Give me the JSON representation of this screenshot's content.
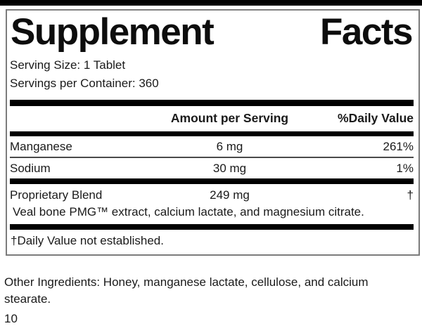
{
  "colors": {
    "heavy_bar": "#000000",
    "panel_border": "#7c7c7c",
    "thin_rule": "#4a4a4a",
    "text": "#1a1a1a",
    "background": "#ffffff"
  },
  "label": {
    "title": "Supplement Facts",
    "title_words": [
      "Supplement",
      "Facts"
    ],
    "serving_size": "Serving Size: 1 Tablet",
    "servings_per_container": "Servings per Container: 360",
    "columns": {
      "amount": "Amount per Serving",
      "daily_value": "%Daily Value"
    },
    "nutrients": [
      {
        "name": "Manganese",
        "amount": "6 mg",
        "daily_value": "261%"
      },
      {
        "name": "Sodium",
        "amount": "30 mg",
        "daily_value": "1%"
      }
    ],
    "blend": {
      "name": "Proprietary Blend",
      "amount": "249 mg",
      "daily_value": "†",
      "ingredients": "Veal bone PMG™ extract, calcium lactate, and magnesium citrate."
    },
    "footnote": "†Daily Value not established."
  },
  "other_ingredients": "Other Ingredients: Honey, manganese lactate, cellulose, and calcium stearate.",
  "page_number": "10"
}
